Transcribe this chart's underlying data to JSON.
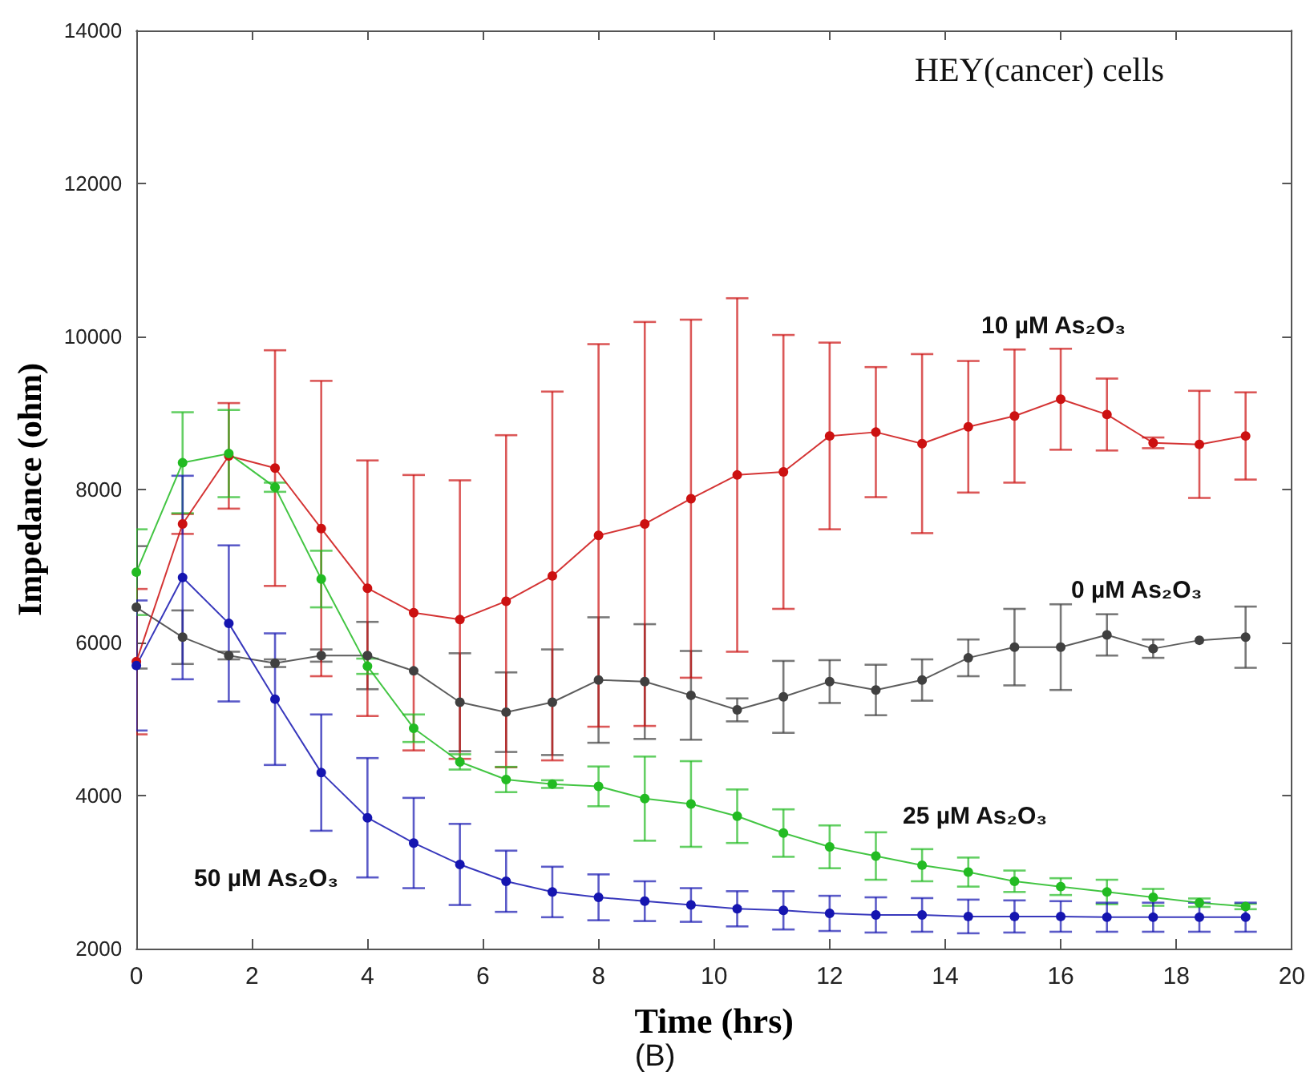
{
  "chart_data": {
    "type": "line",
    "title": "(B)",
    "xlabel": "Time (hrs)",
    "ylabel": "Impedance (ohm)",
    "annotations": [
      "HEY(cancer) cells"
    ],
    "x": [
      0,
      0.8,
      1.6,
      2.4,
      3.2,
      4,
      4.8,
      5.6,
      6.4,
      7.2,
      8,
      8.8,
      9.6,
      10.4,
      11.2,
      12,
      12.8,
      13.6,
      14.4,
      15.2,
      16,
      16.8,
      17.6,
      18.4,
      19.2
    ],
    "series": [
      {
        "name": "0 µM As₂O₃",
        "color": "#404040",
        "values": [
          6460,
          6070,
          5830,
          5730,
          5830,
          5830,
          5630,
          5220,
          5090,
          5220,
          5510,
          5490,
          5310,
          5120,
          5290,
          5490,
          5380,
          5510,
          5800,
          5940,
          5940,
          6100,
          5920,
          6030,
          6070
        ],
        "errors": [
          800,
          350,
          50,
          50,
          80,
          440,
          null,
          640,
          520,
          690,
          820,
          750,
          580,
          150,
          470,
          280,
          330,
          270,
          240,
          500,
          560,
          270,
          120,
          null,
          400
        ]
      },
      {
        "name": "10 µM As₂O₃",
        "color": "#cc1111",
        "values": [
          5750,
          7550,
          8440,
          8280,
          7490,
          6710,
          6390,
          6300,
          6540,
          6870,
          7400,
          7550,
          7880,
          8190,
          8230,
          8700,
          8750,
          8600,
          8820,
          8960,
          9180,
          8980,
          8610,
          8590,
          8700
        ],
        "errors": [
          950,
          130,
          690,
          1540,
          1930,
          1670,
          1800,
          1820,
          2170,
          2410,
          2500,
          2640,
          2340,
          2310,
          1790,
          1220,
          850,
          1170,
          860,
          870,
          660,
          470,
          70,
          700,
          570
        ]
      },
      {
        "name": "25 µM As₂O₃",
        "color": "#22bb22",
        "values": [
          6920,
          8350,
          8470,
          8030,
          6830,
          5690,
          4880,
          4440,
          4210,
          4150,
          4120,
          3960,
          3890,
          3730,
          3510,
          3330,
          3210,
          3090,
          3000,
          2880,
          2810,
          2740,
          2670,
          2600,
          2550
        ],
        "errors": [
          560,
          660,
          570,
          60,
          370,
          100,
          180,
          100,
          165,
          50,
          260,
          550,
          560,
          350,
          310,
          280,
          310,
          210,
          190,
          140,
          110,
          160,
          110,
          55,
          35
        ]
      },
      {
        "name": "50 µM As₂O₃",
        "color": "#1515b0",
        "values": [
          5700,
          6850,
          6250,
          5260,
          4300,
          3710,
          3380,
          3100,
          2880,
          2740,
          2670,
          2620,
          2570,
          2520,
          2500,
          2460,
          2440,
          2440,
          2420,
          2420,
          2420,
          2410,
          2410,
          2410,
          2410
        ],
        "errors": [
          850,
          1330,
          1020,
          860,
          760,
          780,
          590,
          530,
          400,
          330,
          300,
          260,
          220,
          230,
          250,
          230,
          230,
          220,
          220,
          210,
          200,
          190,
          190,
          190,
          190
        ]
      }
    ],
    "xlim": [
      0,
      20
    ],
    "xticks": [
      0,
      2,
      4,
      6,
      8,
      10,
      12,
      14,
      16,
      18,
      20
    ],
    "ylim": [
      2000,
      14000
    ],
    "yticks": [
      2000,
      4000,
      6000,
      8000,
      10000,
      12000,
      14000
    ],
    "marker": "circle",
    "line_style": "solid"
  }
}
